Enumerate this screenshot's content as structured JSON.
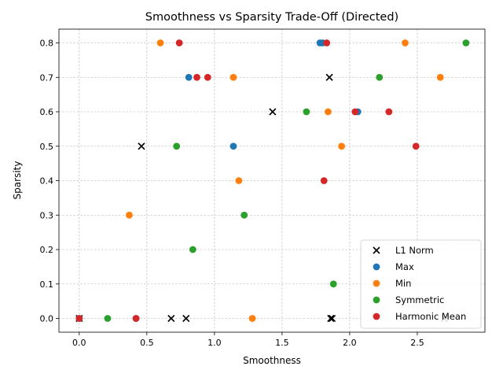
{
  "chart_data": {
    "type": "scatter",
    "title": "Smoothness vs Sparsity Trade-Off (Directed)",
    "xlabel": "Smoothness",
    "ylabel": "Sparsity",
    "xlim": [
      -0.15,
      3.0
    ],
    "ylim": [
      -0.04,
      0.84
    ],
    "xticks": [
      "0.0",
      "0.5",
      "1.0",
      "1.5",
      "2.0",
      "2.5"
    ],
    "xtick_values": [
      0.0,
      0.5,
      1.0,
      1.5,
      2.0,
      2.5
    ],
    "yticks": [
      "0.0",
      "0.1",
      "0.2",
      "0.3",
      "0.4",
      "0.5",
      "0.6",
      "0.7",
      "0.8"
    ],
    "ytick_values": [
      0.0,
      0.1,
      0.2,
      0.3,
      0.4,
      0.5,
      0.6,
      0.7,
      0.8
    ],
    "grid": true,
    "legend_position": "lower-right",
    "series": [
      {
        "name": "L1 Norm",
        "marker": "x",
        "color": "#000000",
        "points": [
          [
            0.0,
            0.0
          ],
          [
            0.46,
            0.5
          ],
          [
            0.68,
            0.0
          ],
          [
            0.79,
            0.0
          ],
          [
            1.43,
            0.6
          ],
          [
            1.85,
            0.7
          ],
          [
            1.86,
            0.0
          ],
          [
            1.87,
            0.0
          ],
          [
            2.7,
            0.0
          ]
        ]
      },
      {
        "name": "Max",
        "marker": "o",
        "color": "#1f77b4",
        "points": [
          [
            0.0,
            0.0
          ],
          [
            0.42,
            0.0
          ],
          [
            0.81,
            0.7
          ],
          [
            1.14,
            0.5
          ],
          [
            1.78,
            0.8
          ],
          [
            1.8,
            0.8
          ],
          [
            2.06,
            0.6
          ]
        ]
      },
      {
        "name": "Min",
        "marker": "o",
        "color": "#ff7f0e",
        "points": [
          [
            0.37,
            0.3
          ],
          [
            0.6,
            0.8
          ],
          [
            1.14,
            0.7
          ],
          [
            1.18,
            0.4
          ],
          [
            1.28,
            0.0
          ],
          [
            1.84,
            0.6
          ],
          [
            1.94,
            0.5
          ],
          [
            2.41,
            0.8
          ],
          [
            2.67,
            0.7
          ]
        ]
      },
      {
        "name": "Symmetric",
        "marker": "o",
        "color": "#2ca02c",
        "points": [
          [
            0.21,
            0.0
          ],
          [
            0.72,
            0.5
          ],
          [
            0.84,
            0.2
          ],
          [
            1.22,
            0.3
          ],
          [
            1.68,
            0.6
          ],
          [
            1.88,
            0.1
          ],
          [
            2.22,
            0.7
          ],
          [
            2.86,
            0.8
          ]
        ]
      },
      {
        "name": "Harmonic Mean",
        "marker": "o",
        "color": "#d62728",
        "points": [
          [
            0.0,
            0.0
          ],
          [
            0.42,
            0.0
          ],
          [
            0.74,
            0.8
          ],
          [
            0.87,
            0.7
          ],
          [
            0.95,
            0.7
          ],
          [
            1.81,
            0.4
          ],
          [
            1.83,
            0.8
          ],
          [
            2.04,
            0.6
          ],
          [
            2.29,
            0.6
          ],
          [
            2.49,
            0.5
          ]
        ]
      }
    ]
  }
}
